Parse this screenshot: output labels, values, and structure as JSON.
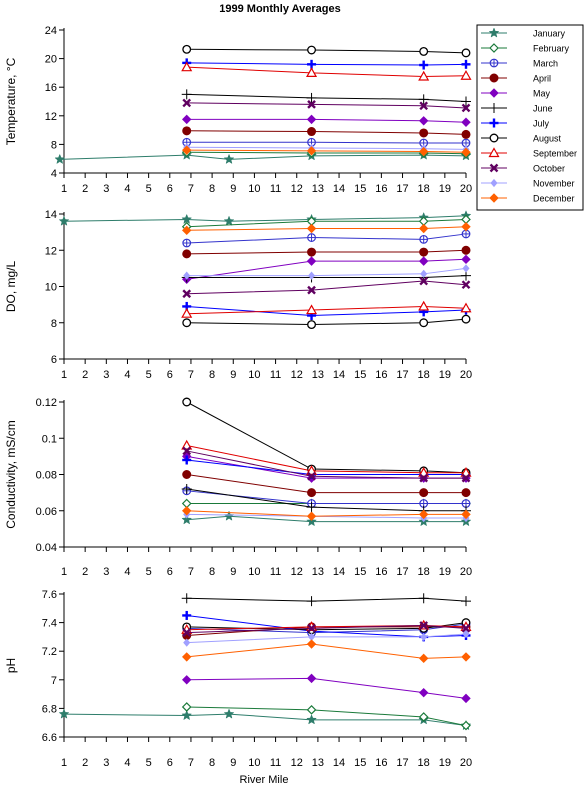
{
  "title": "1999 Monthly Averages",
  "xlabel": "River Mile",
  "x_ticks": [
    1,
    2,
    3,
    4,
    5,
    6,
    7,
    8,
    9,
    10,
    11,
    12,
    13,
    14,
    15,
    16,
    17,
    18,
    19,
    20
  ],
  "series_style": [
    {
      "name": "January",
      "color": "#2e7d6b",
      "marker": "star"
    },
    {
      "name": "February",
      "color": "#1a7a3a",
      "marker": "diamond_open"
    },
    {
      "name": "March",
      "color": "#3333cc",
      "marker": "circle_plus"
    },
    {
      "name": "April",
      "color": "#800000",
      "marker": "circle_filled"
    },
    {
      "name": "May",
      "color": "#8000c0",
      "marker": "diamond_filled"
    },
    {
      "name": "June",
      "color": "#000000",
      "marker": "plus_thin"
    },
    {
      "name": "July",
      "color": "#0000ff",
      "marker": "plus_bold"
    },
    {
      "name": "August",
      "color": "#000000",
      "marker": "circle_open"
    },
    {
      "name": "September",
      "color": "#e00000",
      "marker": "triangle_open"
    },
    {
      "name": "October",
      "color": "#600060",
      "marker": "x_bold"
    },
    {
      "name": "November",
      "color": "#a0a0ff",
      "marker": "diamond_small"
    },
    {
      "name": "December",
      "color": "#ff6000",
      "marker": "diamond_filled"
    }
  ],
  "chart_data": [
    {
      "type": "line",
      "ylabel": "Temperature, °C",
      "xlim": [
        1,
        20
      ],
      "ylim": [
        4,
        24
      ],
      "yticks": [
        4,
        8,
        12,
        16,
        20,
        24
      ],
      "grid": false,
      "legend": "top-right",
      "series": [
        {
          "name": "January",
          "x": [
            0.8,
            6.8,
            8.8,
            12.7,
            18.0,
            20.0
          ],
          "y": [
            5.9,
            6.5,
            5.9,
            6.4,
            6.5,
            6.4
          ]
        },
        {
          "name": "February",
          "x": [
            6.8,
            12.7,
            18.0,
            20.0
          ],
          "y": [
            6.9,
            6.8,
            6.8,
            6.7
          ]
        },
        {
          "name": "March",
          "x": [
            6.8,
            12.7,
            18.0,
            20.0
          ],
          "y": [
            8.3,
            8.3,
            8.2,
            8.2
          ]
        },
        {
          "name": "April",
          "x": [
            6.8,
            12.7,
            18.0,
            20.0
          ],
          "y": [
            9.9,
            9.8,
            9.6,
            9.4
          ]
        },
        {
          "name": "May",
          "x": [
            6.8,
            12.7,
            18.0,
            20.0
          ],
          "y": [
            11.5,
            11.5,
            11.3,
            11.1
          ]
        },
        {
          "name": "June",
          "x": [
            6.8,
            12.7,
            18.0,
            20.0
          ],
          "y": [
            15.0,
            14.5,
            14.3,
            14.0
          ]
        },
        {
          "name": "July",
          "x": [
            6.8,
            12.7,
            18.0,
            20.0
          ],
          "y": [
            19.4,
            19.2,
            19.1,
            19.2
          ]
        },
        {
          "name": "August",
          "x": [
            6.8,
            12.7,
            18.0,
            20.0
          ],
          "y": [
            21.3,
            21.2,
            21.0,
            20.8
          ]
        },
        {
          "name": "September",
          "x": [
            6.8,
            12.7,
            18.0,
            20.0
          ],
          "y": [
            18.8,
            18.0,
            17.5,
            17.6
          ]
        },
        {
          "name": "October",
          "x": [
            6.8,
            12.7,
            18.0,
            20.0
          ],
          "y": [
            13.8,
            13.6,
            13.4,
            13.1
          ]
        },
        {
          "name": "November",
          "x": [
            6.8,
            12.7,
            18.0,
            20.0
          ],
          "y": [
            7.6,
            7.5,
            7.4,
            7.3
          ]
        },
        {
          "name": "December",
          "x": [
            6.8,
            12.7,
            18.0,
            20.0
          ],
          "y": [
            7.2,
            7.1,
            7.0,
            6.9
          ]
        }
      ]
    },
    {
      "type": "line",
      "ylabel": "DO, mg/L",
      "xlim": [
        1,
        20
      ],
      "ylim": [
        6,
        14
      ],
      "yticks": [
        6,
        8,
        10,
        12,
        14
      ],
      "grid": false,
      "series": [
        {
          "name": "January",
          "x": [
            1.0,
            6.8,
            8.8,
            12.7,
            18.0,
            20.0
          ],
          "y": [
            13.6,
            13.7,
            13.6,
            13.7,
            13.8,
            13.9
          ]
        },
        {
          "name": "February",
          "x": [
            6.8,
            12.7,
            18.0,
            20.0
          ],
          "y": [
            13.3,
            13.6,
            13.6,
            13.7
          ]
        },
        {
          "name": "March",
          "x": [
            6.8,
            12.7,
            18.0,
            20.0
          ],
          "y": [
            12.4,
            12.7,
            12.6,
            12.9
          ]
        },
        {
          "name": "April",
          "x": [
            6.8,
            12.7,
            18.0,
            20.0
          ],
          "y": [
            11.8,
            11.9,
            11.9,
            12.0
          ]
        },
        {
          "name": "May",
          "x": [
            6.8,
            12.7,
            18.0,
            20.0
          ],
          "y": [
            10.4,
            11.4,
            11.4,
            11.5
          ]
        },
        {
          "name": "June",
          "x": [
            6.8,
            12.7,
            18.0,
            20.0
          ],
          "y": [
            10.5,
            10.5,
            10.5,
            10.6
          ]
        },
        {
          "name": "July",
          "x": [
            6.8,
            12.7,
            18.0,
            20.0
          ],
          "y": [
            8.9,
            8.4,
            8.6,
            8.7
          ]
        },
        {
          "name": "August",
          "x": [
            6.8,
            12.7,
            18.0,
            20.0
          ],
          "y": [
            8.0,
            7.9,
            8.0,
            8.2
          ]
        },
        {
          "name": "September",
          "x": [
            6.8,
            12.7,
            18.0,
            20.0
          ],
          "y": [
            8.5,
            8.7,
            8.9,
            8.8
          ]
        },
        {
          "name": "October",
          "x": [
            6.8,
            12.7,
            18.0,
            20.0
          ],
          "y": [
            9.6,
            9.8,
            10.3,
            10.1
          ]
        },
        {
          "name": "November",
          "x": [
            6.8,
            12.7,
            18.0,
            20.0
          ],
          "y": [
            10.6,
            10.6,
            10.7,
            11.0
          ]
        },
        {
          "name": "December",
          "x": [
            6.8,
            12.7,
            18.0,
            20.0
          ],
          "y": [
            13.1,
            13.2,
            13.2,
            13.3
          ]
        }
      ]
    },
    {
      "type": "line",
      "ylabel": "Conductivity, mS/cm",
      "xlim": [
        1,
        20
      ],
      "ylim": [
        0.04,
        0.12
      ],
      "yticks": [
        0.04,
        0.06,
        0.08,
        0.1,
        0.12
      ],
      "grid": false,
      "series": [
        {
          "name": "January",
          "x": [
            6.8,
            8.8,
            12.7,
            18.0,
            20.0
          ],
          "y": [
            0.055,
            0.057,
            0.054,
            0.054,
            0.054
          ]
        },
        {
          "name": "February",
          "x": [
            6.8,
            12.7,
            18.0,
            20.0
          ],
          "y": [
            0.064,
            0.064,
            0.064,
            0.064
          ]
        },
        {
          "name": "March",
          "x": [
            6.8,
            12.7,
            18.0,
            20.0
          ],
          "y": [
            0.071,
            0.064,
            0.064,
            0.064
          ]
        },
        {
          "name": "April",
          "x": [
            6.8,
            12.7,
            18.0,
            20.0
          ],
          "y": [
            0.08,
            0.07,
            0.07,
            0.07
          ]
        },
        {
          "name": "May",
          "x": [
            6.8,
            12.7,
            18.0,
            20.0
          ],
          "y": [
            0.09,
            0.078,
            0.078,
            0.078
          ]
        },
        {
          "name": "June",
          "x": [
            6.8,
            12.7,
            18.0,
            20.0
          ],
          "y": [
            0.072,
            0.062,
            0.06,
            0.06
          ]
        },
        {
          "name": "July",
          "x": [
            6.8,
            12.7,
            18.0,
            20.0
          ],
          "y": [
            0.088,
            0.08,
            0.08,
            0.08
          ]
        },
        {
          "name": "August",
          "x": [
            6.8,
            12.7,
            18.0,
            20.0
          ],
          "y": [
            0.12,
            0.083,
            0.082,
            0.081
          ]
        },
        {
          "name": "September",
          "x": [
            6.8,
            12.7,
            18.0,
            20.0
          ],
          "y": [
            0.096,
            0.082,
            0.081,
            0.081
          ]
        },
        {
          "name": "October",
          "x": [
            6.8,
            12.7,
            18.0,
            20.0
          ],
          "y": [
            0.093,
            0.079,
            0.078,
            0.078
          ]
        },
        {
          "name": "November",
          "x": [
            6.8,
            12.7,
            18.0,
            20.0
          ],
          "y": [
            0.058,
            0.057,
            0.056,
            0.056
          ]
        },
        {
          "name": "December",
          "x": [
            6.8,
            12.7,
            18.0,
            20.0
          ],
          "y": [
            0.06,
            0.057,
            0.058,
            0.058
          ]
        }
      ]
    },
    {
      "type": "line",
      "ylabel": "pH",
      "xlim": [
        1,
        20
      ],
      "ylim": [
        6.6,
        7.6
      ],
      "yticks": [
        6.6,
        6.8,
        7,
        7.2,
        7.4,
        7.6
      ],
      "grid": false,
      "series": [
        {
          "name": "January",
          "x": [
            1.0,
            6.8,
            8.8,
            12.7,
            18.0,
            20.0
          ],
          "y": [
            6.76,
            6.75,
            6.76,
            6.72,
            6.72,
            6.68
          ]
        },
        {
          "name": "February",
          "x": [
            6.8,
            12.7,
            18.0,
            20.0
          ],
          "y": [
            6.81,
            6.79,
            6.74,
            6.68
          ]
        },
        {
          "name": "March",
          "x": [
            6.8,
            12.7,
            18.0,
            20.0
          ],
          "y": [
            7.36,
            7.33,
            7.35,
            7.39
          ]
        },
        {
          "name": "April",
          "x": [
            6.8,
            12.7,
            18.0,
            20.0
          ],
          "y": [
            7.31,
            7.37,
            7.37,
            7.37
          ]
        },
        {
          "name": "May",
          "x": [
            6.8,
            12.7,
            18.0,
            20.0
          ],
          "y": [
            7.0,
            7.01,
            6.91,
            6.87
          ]
        },
        {
          "name": "June",
          "x": [
            6.8,
            12.7,
            18.0,
            20.0
          ],
          "y": [
            7.57,
            7.55,
            7.57,
            7.55
          ]
        },
        {
          "name": "July",
          "x": [
            6.8,
            12.7,
            18.0,
            20.0
          ],
          "y": [
            7.45,
            7.34,
            7.3,
            7.31
          ]
        },
        {
          "name": "August",
          "x": [
            6.8,
            12.7,
            18.0,
            20.0
          ],
          "y": [
            7.37,
            7.35,
            7.36,
            7.4
          ]
        },
        {
          "name": "September",
          "x": [
            6.8,
            12.7,
            18.0,
            20.0
          ],
          "y": [
            7.35,
            7.37,
            7.38,
            7.37
          ]
        },
        {
          "name": "October",
          "x": [
            6.8,
            12.7,
            18.0,
            20.0
          ],
          "y": [
            7.33,
            7.36,
            7.38,
            7.36
          ]
        },
        {
          "name": "November",
          "x": [
            6.8,
            12.7,
            18.0,
            20.0
          ],
          "y": [
            7.26,
            7.3,
            7.3,
            7.32
          ]
        },
        {
          "name": "December",
          "x": [
            6.8,
            12.7,
            18.0,
            20.0
          ],
          "y": [
            7.16,
            7.25,
            7.15,
            7.16
          ]
        }
      ]
    }
  ]
}
